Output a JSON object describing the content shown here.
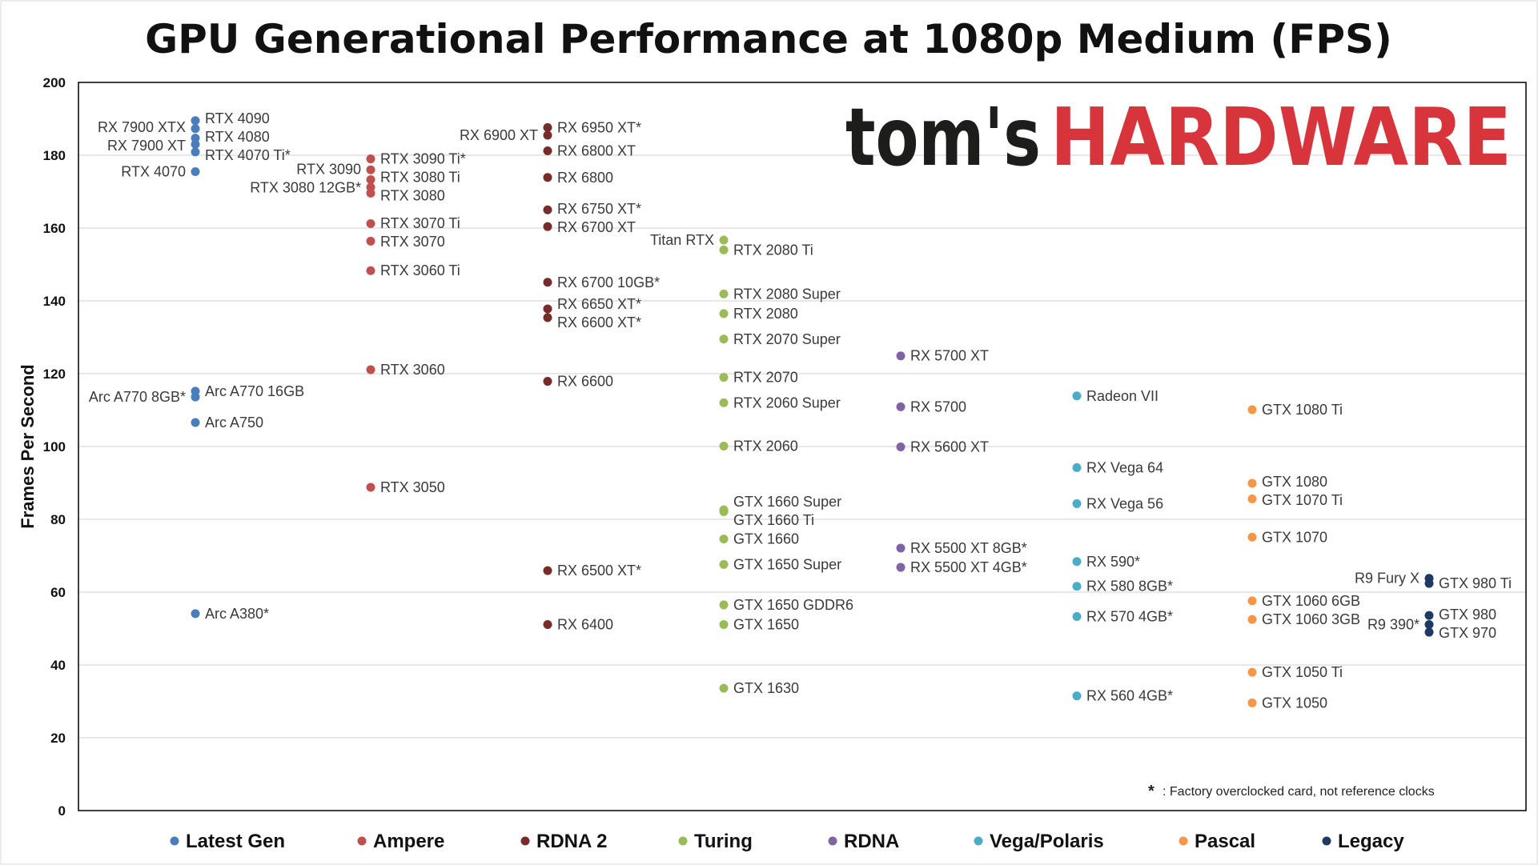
{
  "chart_data": {
    "type": "scatter",
    "title": "GPU Generational Performance at 1080p Medium (FPS)",
    "ylabel": "Frames Per Second",
    "xlabel": "",
    "ylim": [
      0,
      200
    ],
    "yticks": [
      0,
      20,
      40,
      60,
      80,
      100,
      120,
      140,
      160,
      180,
      200
    ],
    "grid": true,
    "legend_position": "bottom",
    "footnote_symbol": "*",
    "footnote": ": Factory overclocked card, not reference clocks",
    "logo": {
      "part1": "tom's",
      "part2": "HARDWARE"
    },
    "series": [
      {
        "name": "Latest Gen",
        "color": "#4a7ebb",
        "points": [
          {
            "label": "RTX 4090",
            "value": 189.5,
            "side": "right"
          },
          {
            "label": "RX 7900 XTX",
            "value": 187.3,
            "side": "left"
          },
          {
            "label": "RTX 4080",
            "value": 184.7,
            "side": "right"
          },
          {
            "label": "RX 7900 XT",
            "value": 183.0,
            "side": "left"
          },
          {
            "label": "RTX 4070 Ti*",
            "value": 180.9,
            "side": "right"
          },
          {
            "label": "RTX 4070",
            "value": 175.5,
            "side": "left"
          },
          {
            "label": "Arc A770 16GB",
            "value": 115.2,
            "side": "right"
          },
          {
            "label": "Arc A770 8GB*",
            "value": 113.6,
            "side": "left"
          },
          {
            "label": "Arc A750",
            "value": 106.6,
            "side": "right"
          },
          {
            "label": "Arc A380*",
            "value": 54.1,
            "side": "right"
          }
        ]
      },
      {
        "name": "Ampere",
        "color": "#c0504d",
        "points": [
          {
            "label": "RTX 3090 Ti*",
            "value": 179.0,
            "side": "right"
          },
          {
            "label": "RTX 3090",
            "value": 176.0,
            "side": "left"
          },
          {
            "label": "RTX 3080 Ti",
            "value": 173.3,
            "side": "right"
          },
          {
            "label": "RTX 3080 12GB*",
            "value": 171.2,
            "side": "left"
          },
          {
            "label": "RTX 3080",
            "value": 169.6,
            "side": "right"
          },
          {
            "label": "RTX 3070 Ti",
            "value": 161.2,
            "side": "right"
          },
          {
            "label": "RTX 3070",
            "value": 156.4,
            "side": "right"
          },
          {
            "label": "RTX 3060 Ti",
            "value": 148.3,
            "side": "right"
          },
          {
            "label": "RTX 3060",
            "value": 121.1,
            "side": "right"
          },
          {
            "label": "RTX 3050",
            "value": 88.8,
            "side": "right"
          }
        ]
      },
      {
        "name": "RDNA 2",
        "color": "#772c2a",
        "points": [
          {
            "label": "RX 6950 XT*",
            "value": 187.6,
            "side": "right"
          },
          {
            "label": "RX 6900 XT",
            "value": 185.5,
            "side": "left"
          },
          {
            "label": "RX 6800 XT",
            "value": 181.2,
            "side": "right"
          },
          {
            "label": "RX 6800",
            "value": 173.9,
            "side": "right"
          },
          {
            "label": "RX 6750 XT*",
            "value": 165.0,
            "side": "right"
          },
          {
            "label": "RX 6700 XT",
            "value": 160.4,
            "side": "right"
          },
          {
            "label": "RX 6700 10GB*",
            "value": 145.1,
            "side": "right"
          },
          {
            "label": "RX 6650 XT*",
            "value": 137.8,
            "side": "right"
          },
          {
            "label": "RX 6600 XT*",
            "value": 135.4,
            "side": "right"
          },
          {
            "label": "RX 6600",
            "value": 117.9,
            "side": "right"
          },
          {
            "label": "RX 6500 XT*",
            "value": 65.9,
            "side": "right"
          },
          {
            "label": "RX 6400",
            "value": 51.1,
            "side": "right"
          }
        ]
      },
      {
        "name": "Turing",
        "color": "#9bbb59",
        "points": [
          {
            "label": "Titan RTX",
            "value": 156.7,
            "side": "left"
          },
          {
            "label": "RTX 2080 Ti",
            "value": 154.0,
            "side": "right"
          },
          {
            "label": "RTX 2080 Super",
            "value": 141.9,
            "side": "right"
          },
          {
            "label": "RTX 2080",
            "value": 136.5,
            "side": "right"
          },
          {
            "label": "RTX 2070 Super",
            "value": 129.5,
            "side": "right"
          },
          {
            "label": "RTX 2070",
            "value": 119.0,
            "side": "right"
          },
          {
            "label": "RTX 2060 Super",
            "value": 112.0,
            "side": "right"
          },
          {
            "label": "RTX 2060",
            "value": 100.1,
            "side": "right"
          },
          {
            "label": "GTX 1660 Super",
            "value": 82.6,
            "side": "right"
          },
          {
            "label": "GTX 1660 Ti",
            "value": 82.1,
            "side": "right"
          },
          {
            "label": "GTX 1660",
            "value": 74.6,
            "side": "right"
          },
          {
            "label": "GTX 1650 Super",
            "value": 67.6,
            "side": "right"
          },
          {
            "label": "GTX 1650 GDDR6",
            "value": 56.5,
            "side": "right"
          },
          {
            "label": "GTX 1650",
            "value": 51.1,
            "side": "right"
          },
          {
            "label": "GTX 1630",
            "value": 33.6,
            "side": "right"
          }
        ]
      },
      {
        "name": "RDNA",
        "color": "#8064a2",
        "points": [
          {
            "label": "RX 5700 XT",
            "value": 124.9,
            "side": "right"
          },
          {
            "label": "RX 5700",
            "value": 110.9,
            "side": "right"
          },
          {
            "label": "RX 5600 XT",
            "value": 99.9,
            "side": "right"
          },
          {
            "label": "RX 5500 XT 8GB*",
            "value": 72.1,
            "side": "right"
          },
          {
            "label": "RX 5500 XT 4GB*",
            "value": 66.8,
            "side": "right"
          }
        ]
      },
      {
        "name": "Vega/Polaris",
        "color": "#4bacc6",
        "points": [
          {
            "label": "Radeon VII",
            "value": 113.9,
            "side": "right"
          },
          {
            "label": "RX Vega 64",
            "value": 94.2,
            "side": "right"
          },
          {
            "label": "RX Vega 56",
            "value": 84.3,
            "side": "right"
          },
          {
            "label": "RX 590*",
            "value": 68.4,
            "side": "right"
          },
          {
            "label": "RX 580 8GB*",
            "value": 61.6,
            "side": "right"
          },
          {
            "label": "RX 570 4GB*",
            "value": 53.3,
            "side": "right"
          },
          {
            "label": "RX 560 4GB*",
            "value": 31.5,
            "side": "right"
          }
        ]
      },
      {
        "name": "Pascal",
        "color": "#f79646",
        "points": [
          {
            "label": "GTX 1080 Ti",
            "value": 110.1,
            "side": "right"
          },
          {
            "label": "GTX 1080",
            "value": 89.9,
            "side": "right"
          },
          {
            "label": "GTX 1070 Ti",
            "value": 85.6,
            "side": "right"
          },
          {
            "label": "GTX 1070",
            "value": 75.1,
            "side": "right"
          },
          {
            "label": "GTX 1060 6GB",
            "value": 57.6,
            "side": "right"
          },
          {
            "label": "GTX 1060 3GB",
            "value": 52.5,
            "side": "right"
          },
          {
            "label": "GTX 1050 Ti",
            "value": 38.0,
            "side": "right"
          },
          {
            "label": "GTX 1050",
            "value": 29.6,
            "side": "right"
          }
        ]
      },
      {
        "name": "Legacy",
        "color": "#1f3864",
        "points": [
          {
            "label": "R9 Fury X",
            "value": 63.8,
            "side": "left"
          },
          {
            "label": "GTX 980 Ti",
            "value": 62.4,
            "side": "right"
          },
          {
            "label": "GTX 980",
            "value": 53.6,
            "side": "right"
          },
          {
            "label": "R9 390*",
            "value": 51.1,
            "side": "left"
          },
          {
            "label": "GTX 970",
            "value": 49.0,
            "side": "right"
          }
        ]
      }
    ]
  }
}
